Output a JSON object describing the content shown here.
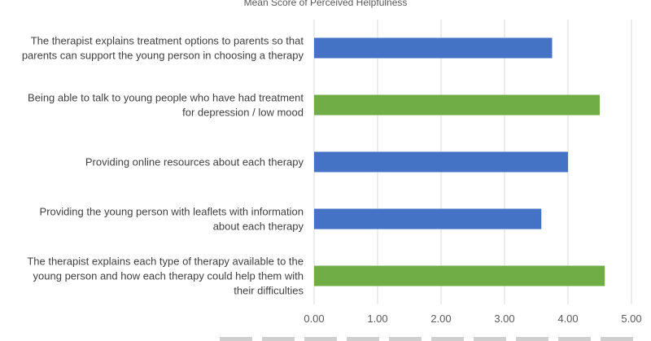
{
  "chart_data": {
    "type": "bar",
    "orientation": "horizontal",
    "title": "Mean Score of Perceived Helpfulness",
    "categories": [
      [
        "The therapist explains treatment options to parents so that",
        "parents can support the young person in choosing a therapy"
      ],
      [
        "Being able to talk to young people who have had treatment",
        "for depression / low mood"
      ],
      [
        "Providing online resources about each therapy"
      ],
      [
        "Providing the young person with leaflets with information",
        "about each therapy"
      ],
      [
        "The therapist explains each type of therapy available to the",
        "young person and how each therapy could help them with",
        "their difficulties"
      ]
    ],
    "values": [
      3.75,
      4.5,
      4.0,
      3.58,
      4.58
    ],
    "bar_colors": [
      "#4472C4",
      "#70AD47",
      "#4472C4",
      "#4472C4",
      "#70AD47"
    ],
    "xlim": [
      0,
      5
    ],
    "xticks": [
      "0.00",
      "1.00",
      "2.00",
      "3.00",
      "4.00",
      "5.00"
    ],
    "grid": "vertical gridlines",
    "legend": "bottom (cut off)"
  },
  "colors": {
    "blue": "#4472C4",
    "green": "#70AD47",
    "grid": "#d9d9d9"
  }
}
